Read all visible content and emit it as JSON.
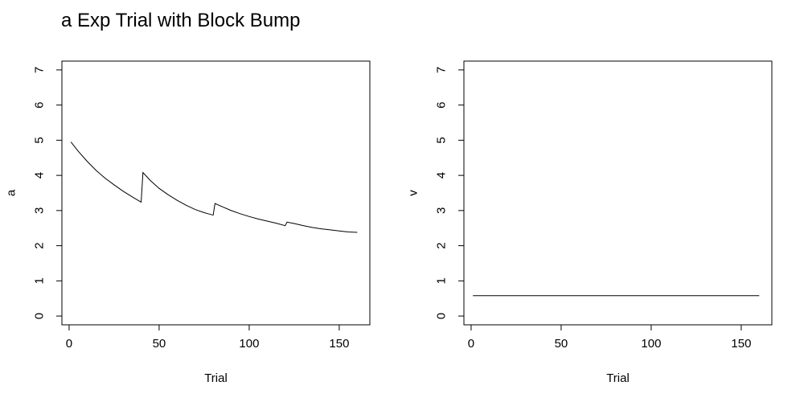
{
  "figure": {
    "title": "a Exp Trial with Block Bump"
  },
  "chart_data": [
    {
      "type": "line",
      "title": "",
      "xlabel": "Trial",
      "ylabel": "a",
      "xlim": [
        -4,
        167
      ],
      "ylim": [
        -0.25,
        7.25
      ],
      "xticks": [
        0,
        50,
        100,
        150
      ],
      "yticks": [
        0,
        1,
        2,
        3,
        4,
        5,
        6,
        7
      ],
      "grid": false,
      "line_color": "#000000",
      "series": [
        {
          "x": [
            1,
            5,
            10,
            15,
            20,
            25,
            30,
            35,
            40,
            41,
            45,
            50,
            55,
            60,
            65,
            70,
            75,
            80,
            81,
            85,
            90,
            95,
            100,
            105,
            110,
            115,
            120,
            121,
            125,
            130,
            135,
            140,
            145,
            150,
            155,
            160
          ],
          "values": [
            4.95,
            4.69,
            4.4,
            4.14,
            3.92,
            3.73,
            3.55,
            3.39,
            3.24,
            4.08,
            3.86,
            3.63,
            3.45,
            3.29,
            3.15,
            3.03,
            2.94,
            2.87,
            3.2,
            3.11,
            3.0,
            2.91,
            2.83,
            2.76,
            2.7,
            2.64,
            2.57,
            2.67,
            2.63,
            2.57,
            2.52,
            2.48,
            2.45,
            2.42,
            2.39,
            2.38
          ]
        }
      ]
    },
    {
      "type": "line",
      "title": "",
      "xlabel": "Trial",
      "ylabel": "v",
      "xlim": [
        -4,
        167
      ],
      "ylim": [
        -0.25,
        7.25
      ],
      "xticks": [
        0,
        50,
        100,
        150
      ],
      "yticks": [
        0,
        1,
        2,
        3,
        4,
        5,
        6,
        7
      ],
      "grid": false,
      "line_color": "#000000",
      "series": [
        {
          "x": [
            1,
            160
          ],
          "values": [
            0.58,
            0.58
          ]
        }
      ]
    }
  ]
}
